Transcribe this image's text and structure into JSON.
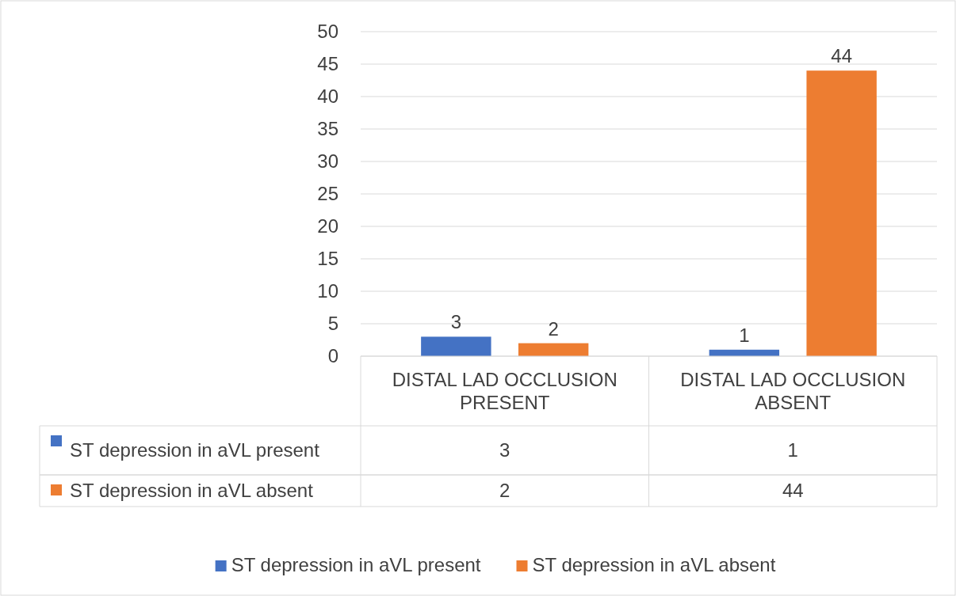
{
  "chart_data": {
    "type": "bar",
    "categories": [
      "DISTAL LAD OCCLUSION PRESENT",
      "DISTAL LAD OCCLUSION ABSENT"
    ],
    "series": [
      {
        "name": "ST depression in aVL present",
        "color": "#4472c4",
        "values": [
          3,
          1
        ]
      },
      {
        "name": "ST depression in aVL absent",
        "color": "#ed7d31",
        "values": [
          2,
          44
        ]
      }
    ],
    "annotations": [
      "3",
      "1",
      "2",
      "44"
    ],
    "ylim": [
      0,
      50
    ],
    "yticks": [
      0,
      5,
      10,
      15,
      20,
      25,
      30,
      35,
      40,
      45,
      50
    ],
    "grid": "y",
    "data_labels": true,
    "legend": "bottom"
  }
}
